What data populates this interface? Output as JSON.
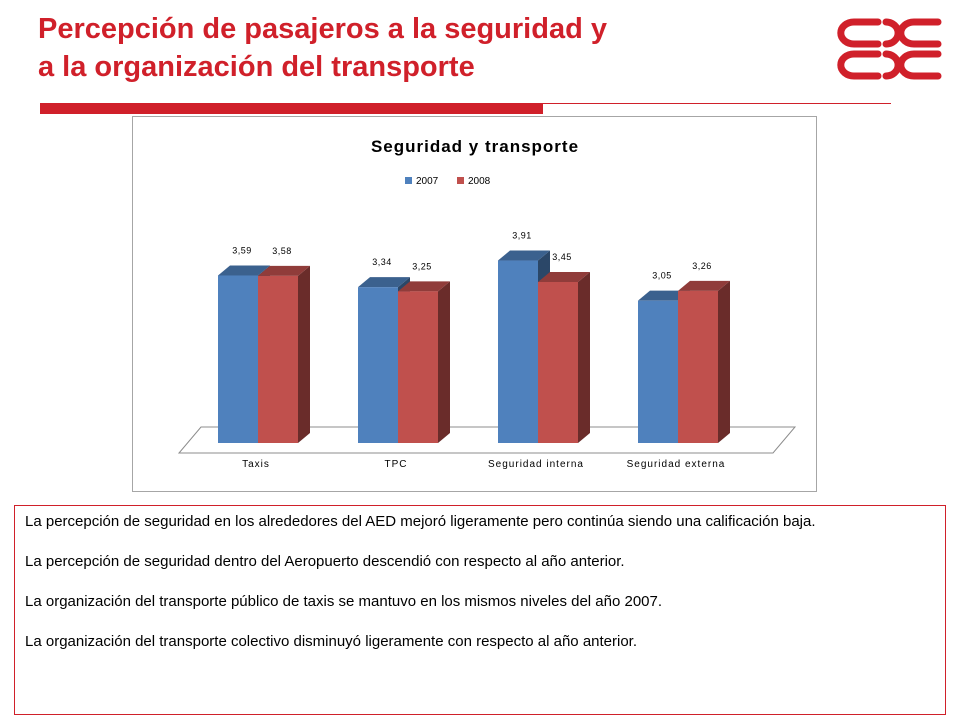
{
  "header": {
    "title_line1": "Percepción de pasajeros a la seguridad y",
    "title_line2": "a la organización del transporte"
  },
  "colors": {
    "accent": "#d0202a",
    "series_2007": "#4f81bd",
    "series_2008": "#c0504d"
  },
  "chart_data": {
    "type": "bar",
    "title": "Seguridad y transporte",
    "categories": [
      "Taxis",
      "TPC",
      "Seguridad interna",
      "Seguridad externa"
    ],
    "series": [
      {
        "name": "2007",
        "values": [
          3.59,
          3.34,
          3.91,
          3.05
        ],
        "labels": [
          "3,59",
          "3,34",
          "3,91",
          "3,05"
        ]
      },
      {
        "name": "2008",
        "values": [
          3.58,
          3.25,
          3.45,
          3.26
        ],
        "labels": [
          "3,58",
          "3,25",
          "3,45",
          "3,26"
        ]
      }
    ],
    "legend": "top-center",
    "xlabel": "",
    "ylabel": "",
    "ylim": [
      0,
      4.5
    ],
    "grid": false
  },
  "notes": {
    "items": [
      "La percepción de seguridad en los alrededores del AED mejoró ligeramente pero continúa siendo una calificación baja.",
      "La percepción de seguridad dentro del Aeropuerto descendió con respecto al año anterior.",
      "La organización del transporte público de  taxis se mantuvo en los mismos niveles del año 2007.",
      "La organización del transporte colectivo disminuyó ligeramente con respecto al año anterior."
    ]
  }
}
